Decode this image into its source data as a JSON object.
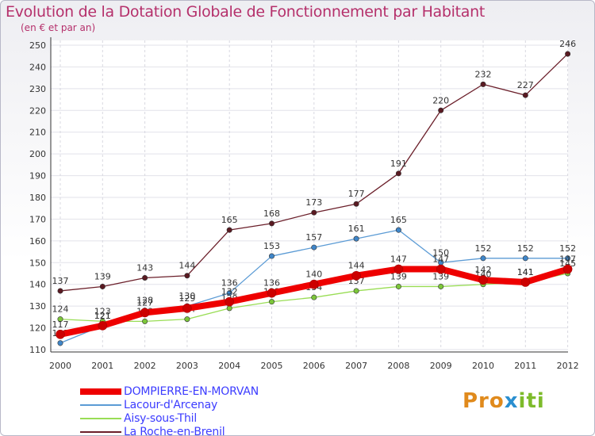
{
  "title": "Evolution de la Dotation Globale de Fonctionnement par Habitant",
  "subtitle": "(en € et par an)",
  "brand": {
    "part1": "Pro",
    "icon": "x",
    "part2": "iti"
  },
  "chart_data": {
    "type": "line",
    "x": [
      "2000",
      "2001",
      "2002",
      "2003",
      "2004",
      "2005",
      "2006",
      "2007",
      "2008",
      "2009",
      "2010",
      "2011",
      "2012"
    ],
    "ylim": [
      110,
      250
    ],
    "yticks": [
      110,
      120,
      130,
      140,
      150,
      160,
      170,
      180,
      190,
      200,
      210,
      220,
      230,
      240,
      250
    ],
    "grid": true,
    "series": [
      {
        "name": "La Roche-en-Brenil",
        "color": "#6b1f2a",
        "marker": "#5a1a22",
        "values": [
          137,
          139,
          143,
          144,
          165,
          168,
          173,
          177,
          191,
          220,
          232,
          227,
          246
        ],
        "labels": [
          "137",
          "139",
          "143",
          "144",
          "165",
          "168",
          "173",
          "177",
          "191",
          "220",
          "232",
          "227",
          "246"
        ]
      },
      {
        "name": "Aisy-sous-Thil",
        "color": "#99dd55",
        "marker": "#7cc63a",
        "values": [
          124,
          123,
          123,
          124,
          129,
          132,
          134,
          137,
          139,
          139,
          140,
          141,
          145
        ],
        "labels": [
          "124",
          "123",
          "123",
          "124",
          "129",
          "132",
          "134",
          "137",
          "139",
          "139",
          "140",
          "141",
          "145"
        ]
      },
      {
        "name": "Lacour-d'Arcenay",
        "color": "#5b9bd5",
        "marker": "#3f86c9",
        "values": [
          113,
          121,
          128,
          130,
          136,
          153,
          157,
          161,
          165,
          150,
          152,
          152,
          152
        ],
        "labels": [
          "113",
          "121",
          "128",
          "130",
          "136",
          "153",
          "157",
          "161",
          "165",
          "150",
          "152",
          "152",
          "152"
        ]
      },
      {
        "name": "DOMPIERRE-EN-MORVAN",
        "color": "#ee0000",
        "marker": "#cc0000",
        "values": [
          117,
          121,
          127,
          129,
          132,
          136,
          140,
          144,
          147,
          147,
          142,
          141,
          147
        ],
        "labels": [
          "117",
          "121",
          "127",
          "129",
          "132",
          "136",
          "140",
          "144",
          "147",
          "147",
          "142",
          "141",
          "147"
        ]
      }
    ]
  },
  "legend": [
    {
      "label": "DOMPIERRE-EN-MORVAN",
      "color": "#ee0000"
    },
    {
      "label": "Lacour-d'Arcenay",
      "color": "#5b9bd5"
    },
    {
      "label": "Aisy-sous-Thil",
      "color": "#99dd55"
    },
    {
      "label": "La Roche-en-Brenil",
      "color": "#6b1f2a"
    }
  ]
}
